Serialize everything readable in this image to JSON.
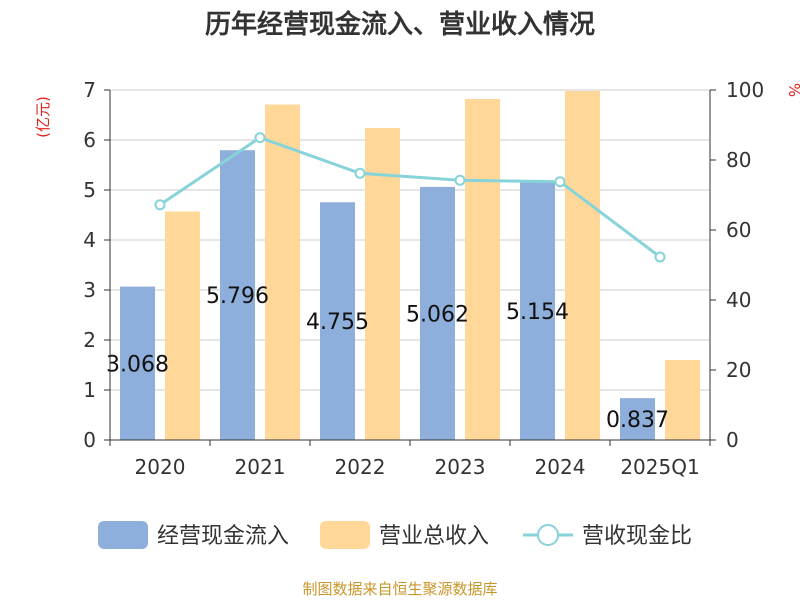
{
  "chart_data": {
    "type": "bar",
    "title": "历年经营现金流入、营业收入情况",
    "categories": [
      "2020",
      "2021",
      "2022",
      "2023",
      "2024",
      "2025Q1"
    ],
    "y_left": {
      "unit_label": "(亿元)",
      "ylim": [
        0,
        7
      ],
      "ticks": [
        "0",
        "1",
        "2",
        "3",
        "4",
        "5",
        "6",
        "7"
      ]
    },
    "y_right": {
      "unit_label": "%",
      "ylim": [
        0,
        100
      ],
      "ticks": [
        "0",
        "20",
        "40",
        "60",
        "80",
        "100"
      ]
    },
    "series": [
      {
        "name": "经营现金流入",
        "kind": "bar",
        "axis": "left",
        "color": "#8eaedb",
        "values": [
          3.068,
          5.796,
          4.755,
          5.062,
          5.154,
          0.837
        ],
        "labels": [
          "3.068",
          "5.796",
          "4.755",
          "5.062",
          "5.154",
          "0.837"
        ]
      },
      {
        "name": "营业总收入",
        "kind": "bar",
        "axis": "left",
        "color": "#ffd899",
        "values": [
          4.57,
          6.71,
          6.24,
          6.82,
          6.98,
          1.6
        ]
      },
      {
        "name": "营收现金比",
        "kind": "line",
        "axis": "right",
        "color": "#86d3d9",
        "values": [
          67.2,
          86.4,
          76.2,
          74.2,
          73.8,
          52.3
        ]
      }
    ],
    "grid": true,
    "legend_position": "bottom"
  },
  "source": "制图数据来自恒生聚源数据库"
}
